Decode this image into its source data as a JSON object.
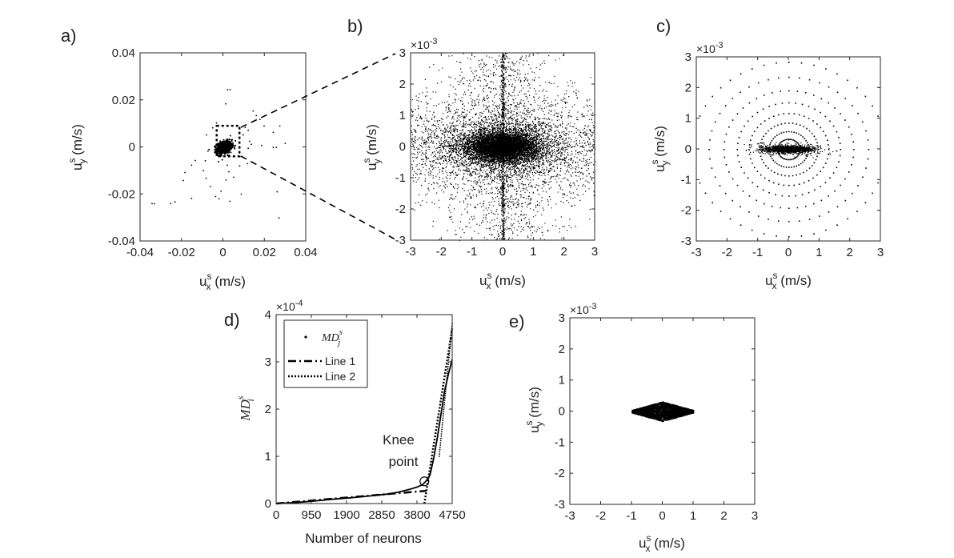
{
  "panel_labels": {
    "a": "a)",
    "b": "b)",
    "c": "c)",
    "d": "d)",
    "e": "e)"
  },
  "colors": {
    "marker": "#000000",
    "axis": "#262626",
    "background": "#ffffff"
  },
  "chart_data": [
    {
      "id": "a",
      "type": "scatter",
      "xlabel": {
        "main": "u",
        "sup": "s",
        "sub": "x",
        "unit": " (m/s)"
      },
      "ylabel": {
        "main": "u",
        "sup": "s",
        "sub": "y",
        "unit": " (m/s)"
      },
      "xlim": [
        -0.04,
        0.04
      ],
      "ylim": [
        -0.04,
        0.04
      ],
      "xticks": [
        -0.04,
        -0.02,
        0,
        0.02,
        0.04
      ],
      "yticks": [
        -0.04,
        -0.02,
        0,
        0.02,
        0.04
      ],
      "xtick_labels": [
        "-0.04",
        "-0.02",
        "0",
        "0.02",
        "0.04"
      ],
      "ytick_labels": [
        "-0.04",
        "-0.02",
        "0",
        "0.02",
        "0.04"
      ],
      "zoom_box": {
        "x": [
          -0.003,
          0.008
        ],
        "y": [
          -0.004,
          0.009
        ]
      },
      "points": [
        [
          0.0013,
          0.0183
        ],
        [
          0.0023,
          0.0243
        ],
        [
          0.0035,
          0.0244
        ],
        [
          0.0146,
          0.0153
        ],
        [
          0.0161,
          0.0133
        ],
        [
          0.0179,
          0.0117
        ],
        [
          0.0199,
          0.0089
        ],
        [
          0.0243,
          0.0062
        ],
        [
          0.0275,
          0.0089
        ],
        [
          0.0108,
          0.0083
        ],
        [
          0.0122,
          0.0071
        ],
        [
          0.0098,
          0.0051
        ],
        [
          0.0129,
          0.0024
        ],
        [
          0.0137,
          0.0011
        ],
        [
          0.0122,
          -0.0006
        ],
        [
          0.0187,
          0.0006
        ],
        [
          0.0243,
          -0.0002
        ],
        [
          0.0258,
          -0.0002
        ],
        [
          0.0301,
          0.0015
        ],
        [
          -0.0072,
          -0.0018
        ],
        [
          -0.0085,
          -0.0059
        ],
        [
          -0.0094,
          -0.0101
        ],
        [
          -0.0081,
          -0.0133
        ],
        [
          -0.0059,
          -0.0169
        ],
        [
          -0.0035,
          -0.0211
        ],
        [
          -0.0151,
          -0.0219
        ],
        [
          -0.0231,
          -0.0234
        ],
        [
          -0.0252,
          -0.0241
        ],
        [
          -0.0191,
          -0.0143
        ],
        [
          -0.0183,
          -0.0109
        ],
        [
          -0.0151,
          -0.0078
        ],
        [
          -0.0133,
          -0.0058
        ],
        [
          -0.0009,
          -0.0189
        ],
        [
          0.0015,
          -0.0141
        ],
        [
          0.0029,
          -0.0106
        ],
        [
          0.0052,
          -0.0129
        ],
        [
          0.0081,
          -0.0081
        ],
        [
          0.0119,
          -0.0071
        ],
        [
          0.0262,
          -0.0191
        ],
        [
          0.0271,
          -0.0302
        ],
        [
          0.0089,
          -0.0201
        ],
        [
          0.0034,
          -0.0231
        ],
        [
          -0.0331,
          -0.0242
        ],
        [
          -0.0342,
          -0.0241
        ],
        [
          -0.0031,
          0.0102
        ],
        [
          -0.0049,
          0.0081
        ],
        [
          -0.0079,
          0.0051
        ],
        [
          -0.0019,
          -0.0221
        ],
        [
          0.0021,
          -0.0078
        ]
      ]
    },
    {
      "id": "b",
      "type": "scatter",
      "xlabel": {
        "main": "u",
        "sup": "s",
        "sub": "x",
        "unit": " (m/s)"
      },
      "ylabel": {
        "main": "u",
        "sup": "s",
        "sub": "y",
        "unit": " (m/s)"
      },
      "xlim": [
        -3,
        3
      ],
      "ylim": [
        -3,
        3
      ],
      "multiplier": "×10",
      "multiplier_exp": "-3",
      "xticks": [
        -3,
        -2,
        -1,
        0,
        1,
        2,
        3
      ],
      "yticks": [
        -3,
        -2,
        -1,
        0,
        1,
        2,
        3
      ],
      "xtick_labels": [
        "-3",
        "-2",
        "-1",
        "0",
        "1",
        "2",
        "3"
      ],
      "ytick_labels": [
        "-3",
        "-2",
        "-1",
        "0",
        "1",
        "2",
        "3"
      ],
      "points": []
    },
    {
      "id": "c",
      "type": "scatter",
      "xlabel": {
        "main": "u",
        "sup": "s",
        "sub": "x",
        "unit": " (m/s)"
      },
      "ylabel": {
        "main": "u",
        "sup": "s",
        "sub": "y",
        "unit": " (m/s)"
      },
      "xlim": [
        -3,
        3
      ],
      "ylim": [
        -3,
        3
      ],
      "multiplier": "×10",
      "multiplier_exp": "-3",
      "xticks": [
        -3,
        -2,
        -1,
        0,
        1,
        2,
        3
      ],
      "yticks": [
        -3,
        -2,
        -1,
        0,
        1,
        2,
        3
      ],
      "xtick_labels": [
        "-3",
        "-2",
        "-1",
        "0",
        "1",
        "2",
        "3"
      ],
      "ytick_labels": [
        "-3",
        "-2",
        "-1",
        "0",
        "1",
        "2",
        "3"
      ],
      "points": []
    },
    {
      "id": "d",
      "type": "line",
      "xlabel": {
        "main": "Number of neurons"
      },
      "ylabel": {
        "main": "MD",
        "sup": "s",
        "sub": "i"
      },
      "xlim": [
        0,
        4750
      ],
      "ylim": [
        0,
        4
      ],
      "multiplier": "×10",
      "multiplier_exp": "-4",
      "xticks": [
        0,
        950,
        1900,
        2850,
        3800,
        4750
      ],
      "yticks": [
        0,
        1,
        2,
        3,
        4
      ],
      "xtick_labels": [
        "0",
        "950",
        "1900",
        "2850",
        "3800",
        "4750"
      ],
      "ytick_labels": [
        "0",
        "1",
        "2",
        "3",
        "4"
      ],
      "legend": {
        "placement": "top-left",
        "entries": [
          "MD",
          "Line 1",
          "Line 2"
        ],
        "entry0_sup": "s",
        "entry0_sub": "j"
      },
      "annotation": {
        "lines": [
          "Knee",
          "point"
        ],
        "at": [
          4000,
          0.47
        ]
      },
      "series": [
        {
          "name": "MD",
          "style": "dots+solid",
          "x": [
            0,
            500,
            1000,
            1500,
            2000,
            2500,
            3000,
            3300,
            3600,
            3800,
            3950,
            4050,
            4150,
            4250,
            4350,
            4450,
            4550,
            4650,
            4750
          ],
          "y": [
            0,
            0.02,
            0.05,
            0.09,
            0.12,
            0.16,
            0.2,
            0.24,
            0.3,
            0.35,
            0.4,
            0.48,
            0.6,
            0.95,
            1.4,
            1.9,
            2.4,
            2.75,
            3.05
          ]
        },
        {
          "name": "Line 1",
          "style": "dashdot",
          "x": [
            0,
            4050
          ],
          "y": [
            0,
            0.27
          ]
        },
        {
          "name": "Line 2",
          "style": "dotted",
          "x": [
            4000,
            4750
          ],
          "y": [
            0,
            3.7
          ]
        }
      ]
    },
    {
      "id": "e",
      "type": "scatter",
      "xlabel": {
        "main": "u",
        "sup": "s",
        "sub": "x",
        "unit": " (m/s)"
      },
      "ylabel": {
        "main": "u",
        "sup": "s",
        "sub": "y",
        "unit": " (m/s)"
      },
      "xlim": [
        -3,
        3
      ],
      "ylim": [
        -3,
        3
      ],
      "multiplier": "×10",
      "multiplier_exp": "-3",
      "xticks": [
        -3,
        -2,
        -1,
        0,
        1,
        2,
        3
      ],
      "yticks": [
        -3,
        -2,
        -1,
        0,
        1,
        2,
        3
      ],
      "xtick_labels": [
        "-3",
        "-2",
        "-1",
        "0",
        "1",
        "2",
        "3"
      ],
      "ytick_labels": [
        "-3",
        "-2",
        "-1",
        "0",
        "1",
        "2",
        "3"
      ],
      "points": []
    }
  ]
}
